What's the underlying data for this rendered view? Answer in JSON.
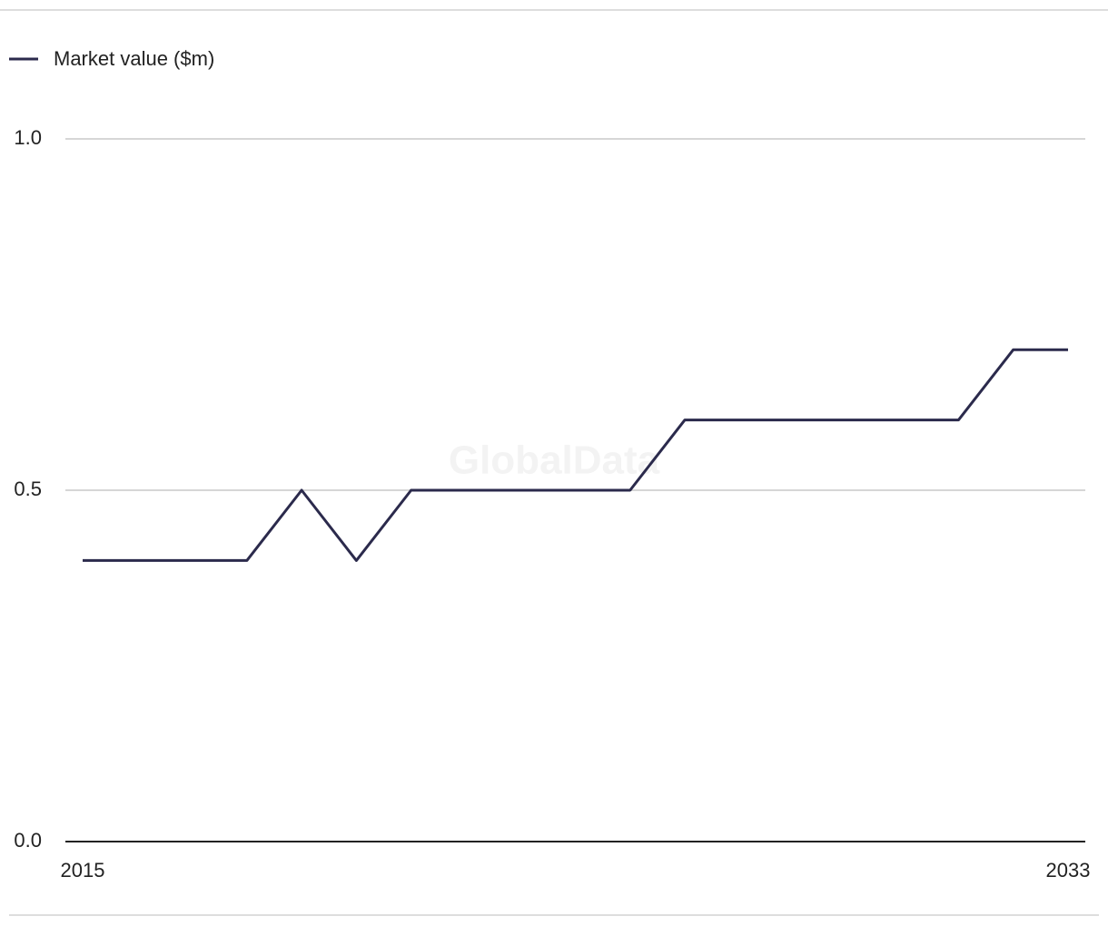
{
  "chart_data": {
    "type": "line",
    "watermark": "GlobalData",
    "x": [
      2015,
      2016,
      2017,
      2018,
      2019,
      2020,
      2021,
      2022,
      2023,
      2024,
      2025,
      2026,
      2027,
      2028,
      2029,
      2030,
      2031,
      2032,
      2033
    ],
    "series": [
      {
        "name": "Market value ($m)",
        "color": "#2b2a4c",
        "values": [
          0.4,
          0.4,
          0.4,
          0.4,
          0.5,
          0.4,
          0.5,
          0.5,
          0.5,
          0.5,
          0.5,
          0.6,
          0.6,
          0.6,
          0.6,
          0.6,
          0.6,
          0.7,
          0.7
        ]
      }
    ],
    "xlim": [
      2015,
      2033
    ],
    "xticks": [
      2015,
      2033
    ],
    "ylim": [
      0,
      1
    ],
    "yticks": [
      {
        "value": 0,
        "label": "0.0"
      },
      0.5,
      {
        "value": 1,
        "label": "1.0"
      }
    ],
    "grid": true
  }
}
